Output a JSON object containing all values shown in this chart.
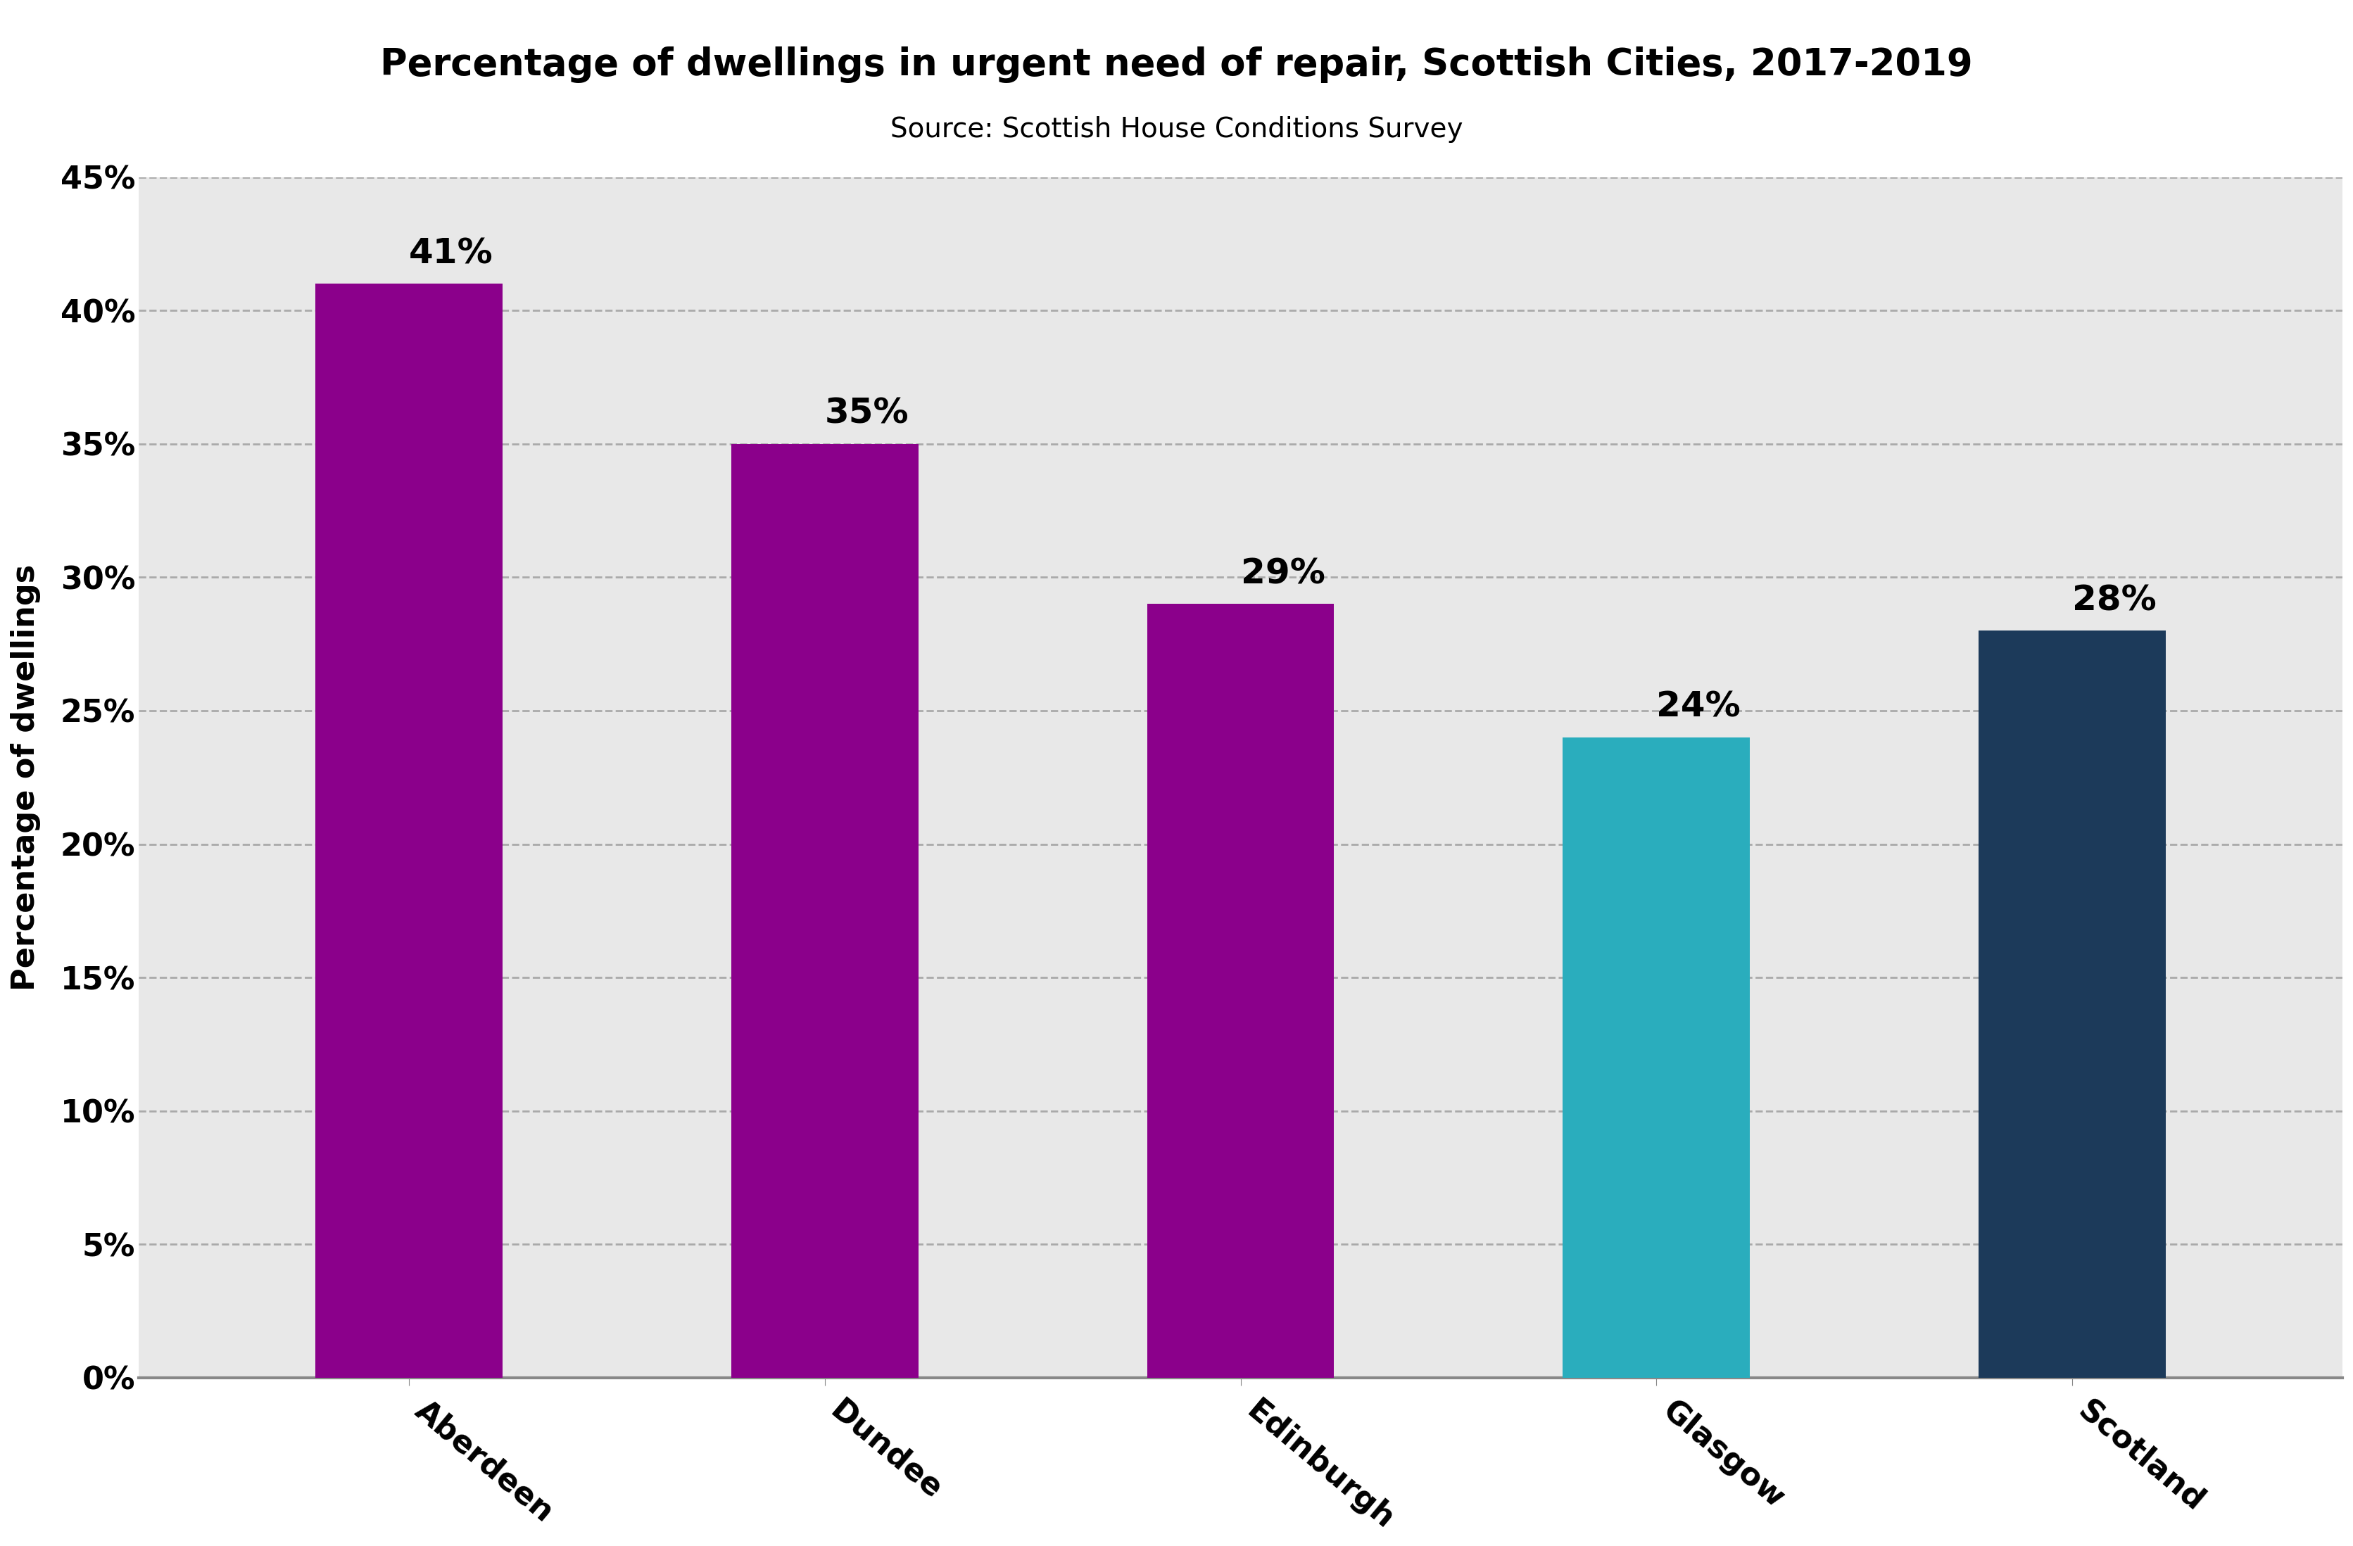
{
  "title": "Percentage of dwellings in urgent need of repair, Scottish Cities, 2017-2019",
  "subtitle": "Source: Scottish House Conditions Survey",
  "categories": [
    "Aberdeen",
    "Dundee",
    "Edinburgh",
    "Glasgow",
    "Scotland"
  ],
  "values": [
    0.41,
    0.35,
    0.29,
    0.24,
    0.28
  ],
  "bar_colors": [
    "#8B008B",
    "#8B008B",
    "#8B008B",
    "#2AADBD",
    "#1C3A5A"
  ],
  "bar_labels": [
    "41%",
    "35%",
    "29%",
    "24%",
    "28%"
  ],
  "ylabel": "Percentage of dwellings",
  "ylim": [
    0,
    0.45
  ],
  "yticks": [
    0,
    0.05,
    0.1,
    0.15,
    0.2,
    0.25,
    0.3,
    0.35,
    0.4,
    0.45
  ],
  "ytick_labels": [
    "0%",
    "5%",
    "10%",
    "15%",
    "20%",
    "25%",
    "30%",
    "35%",
    "40%",
    "45%"
  ],
  "plot_bg_color": "#e8e8e8",
  "fig_bg_color": "#ffffff",
  "title_fontsize": 38,
  "subtitle_fontsize": 28,
  "tick_fontsize": 32,
  "ylabel_fontsize": 32,
  "bar_label_fontsize": 36,
  "xtick_rotation": -40,
  "bar_width": 0.45,
  "grid_color": "#aaaaaa",
  "axis_color": "#888888"
}
